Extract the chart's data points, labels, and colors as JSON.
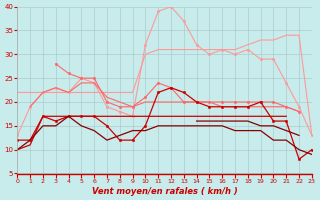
{
  "x": [
    0,
    1,
    2,
    3,
    4,
    5,
    6,
    7,
    8,
    9,
    10,
    11,
    12,
    13,
    14,
    15,
    16,
    17,
    18,
    19,
    20,
    21,
    22,
    23
  ],
  "series": [
    {
      "color": "#FF9999",
      "linewidth": 0.8,
      "marker": null,
      "y": [
        22,
        22,
        22,
        22,
        22,
        22,
        22,
        22,
        22,
        22,
        30,
        31,
        31,
        31,
        31,
        31,
        31,
        31,
        32,
        33,
        33,
        34,
        34,
        13
      ]
    },
    {
      "color": "#FF9999",
      "linewidth": 0.8,
      "marker": "o",
      "markersize": 1.8,
      "y": [
        13,
        19,
        22,
        23,
        22,
        25,
        24,
        19,
        18,
        17,
        32,
        39,
        40,
        37,
        32,
        30,
        31,
        30,
        31,
        29,
        29,
        24,
        19,
        13
      ]
    },
    {
      "color": "#FF6666",
      "linewidth": 0.8,
      "marker": "o",
      "markersize": 1.8,
      "y": [
        null,
        null,
        null,
        28,
        26,
        25,
        25,
        20,
        19,
        19,
        21,
        24,
        23,
        20,
        20,
        20,
        20,
        20,
        20,
        20,
        20,
        19,
        18,
        null
      ]
    },
    {
      "color": "#FF6666",
      "linewidth": 0.8,
      "marker": null,
      "y": [
        null,
        19,
        22,
        23,
        22,
        24,
        24,
        21,
        20,
        19,
        20,
        20,
        20,
        20,
        20,
        20,
        19,
        19,
        19,
        19,
        19,
        19,
        18,
        null
      ]
    },
    {
      "color": "#CC0000",
      "linewidth": 0.9,
      "marker": "o",
      "markersize": 1.8,
      "y": [
        12,
        12,
        17,
        16,
        17,
        17,
        17,
        15,
        12,
        12,
        15,
        22,
        23,
        22,
        20,
        19,
        19,
        19,
        19,
        20,
        16,
        16,
        8,
        10
      ]
    },
    {
      "color": "#CC0000",
      "linewidth": 0.9,
      "marker": null,
      "y": [
        10,
        11,
        17,
        17,
        17,
        17,
        17,
        17,
        17,
        17,
        17,
        17,
        17,
        17,
        17,
        17,
        17,
        17,
        17,
        17,
        17,
        17,
        null,
        null
      ]
    },
    {
      "color": "#880000",
      "linewidth": 0.9,
      "marker": null,
      "y": [
        10,
        12,
        15,
        15,
        17,
        15,
        14,
        12,
        13,
        14,
        14,
        15,
        15,
        15,
        15,
        15,
        15,
        14,
        14,
        14,
        12,
        12,
        10,
        9
      ]
    },
    {
      "color": "#880000",
      "linewidth": 0.9,
      "marker": null,
      "y": [
        null,
        null,
        null,
        null,
        null,
        null,
        null,
        null,
        null,
        null,
        null,
        null,
        null,
        null,
        16,
        16,
        16,
        16,
        16,
        15,
        15,
        14,
        13,
        null
      ]
    }
  ],
  "xlabel": "Vent moyen/en rafales ( km/h )",
  "xlim": [
    0,
    23
  ],
  "ylim": [
    5,
    40
  ],
  "yticks": [
    5,
    10,
    15,
    20,
    25,
    30,
    35,
    40
  ],
  "xticks": [
    0,
    1,
    2,
    3,
    4,
    5,
    6,
    7,
    8,
    9,
    10,
    11,
    12,
    13,
    14,
    15,
    16,
    17,
    18,
    19,
    20,
    21,
    22,
    23
  ],
  "bg_color": "#C8EBEB",
  "grid_color": "#AACCCC",
  "tick_color": "#CC0000",
  "label_color": "#CC0000"
}
